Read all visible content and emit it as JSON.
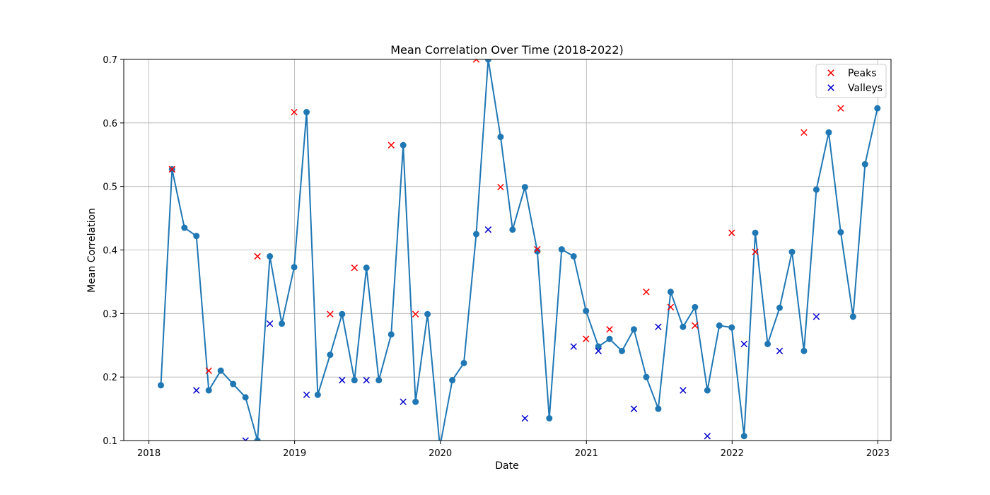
{
  "chart_data": {
    "type": "line",
    "title": "Mean Correlation Over Time (2018-2022)",
    "xlabel": "Date",
    "ylabel": "Mean Correlation",
    "xlim": [
      "2017-10-30",
      "2023-02-03"
    ],
    "ylim": [
      0.1,
      0.7
    ],
    "x_ticks": [
      "2018",
      "2019",
      "2020",
      "2021",
      "2022",
      "2023"
    ],
    "x_tick_dates": [
      "2018-01-01",
      "2019-01-01",
      "2020-01-01",
      "2021-01-01",
      "2022-01-01",
      "2023-01-01"
    ],
    "y_ticks": [
      "0.1",
      "0.2",
      "0.3",
      "0.4",
      "0.5",
      "0.6",
      "0.7"
    ],
    "y_tick_values": [
      0.1,
      0.2,
      0.3,
      0.4,
      0.5,
      0.6,
      0.7
    ],
    "grid": true,
    "legend_position": "top-right",
    "legend": [
      "Peaks",
      "Valleys"
    ],
    "colors": {
      "line": "#1f77b4",
      "peaks": "#ff0000",
      "valleys": "#0000cd",
      "grid": "#b0b0b0"
    },
    "series": [
      {
        "style": "line-markers",
        "x": [
          "2018-01-31",
          "2018-02-28",
          "2018-03-31",
          "2018-04-30",
          "2018-05-31",
          "2018-06-30",
          "2018-07-31",
          "2018-08-31",
          "2018-09-30",
          "2018-10-31",
          "2018-11-30",
          "2018-12-31",
          "2019-01-31",
          "2019-02-28",
          "2019-03-31",
          "2019-04-30",
          "2019-05-31",
          "2019-06-30",
          "2019-07-31",
          "2019-08-31",
          "2019-09-30",
          "2019-10-31",
          "2019-11-30",
          "2019-12-31",
          "2020-01-31",
          "2020-02-29",
          "2020-03-31",
          "2020-04-30",
          "2020-05-31",
          "2020-06-30",
          "2020-07-31",
          "2020-08-31",
          "2020-09-30",
          "2020-10-31",
          "2020-11-30",
          "2020-12-31",
          "2021-01-31",
          "2021-02-28",
          "2021-03-31",
          "2021-04-30",
          "2021-05-31",
          "2021-06-30",
          "2021-07-31",
          "2021-08-31",
          "2021-09-30",
          "2021-10-31",
          "2021-11-30",
          "2021-12-31",
          "2022-01-31",
          "2022-02-28",
          "2022-03-31",
          "2022-04-30",
          "2022-05-31",
          "2022-06-30",
          "2022-07-31",
          "2022-08-31",
          "2022-09-30",
          "2022-10-31",
          "2022-11-30",
          "2022-12-31"
        ],
        "values": [
          0.187,
          0.527,
          0.435,
          0.422,
          0.179,
          0.21,
          0.189,
          0.168,
          0.1,
          0.39,
          0.284,
          0.373,
          0.617,
          0.172,
          0.235,
          0.299,
          0.195,
          0.372,
          0.195,
          0.267,
          0.565,
          0.161,
          0.299,
          0.09,
          0.195,
          0.222,
          0.425,
          0.7,
          0.578,
          0.432,
          0.499,
          0.398,
          0.135,
          0.401,
          0.39,
          0.304,
          0.248,
          0.26,
          0.241,
          0.275,
          0.2,
          0.15,
          0.334,
          0.279,
          0.31,
          0.179,
          0.281,
          0.278,
          0.107,
          0.427,
          0.252,
          0.309,
          0.397,
          0.241,
          0.495,
          0.585,
          0.428,
          0.295,
          0.535,
          0.623
        ]
      },
      {
        "name": "Peaks",
        "style": "x-markers",
        "x": [
          "2018-02-28",
          "2018-05-31",
          "2018-09-30",
          "2018-12-31",
          "2019-03-31",
          "2019-05-31",
          "2019-08-31",
          "2019-10-31",
          "2020-03-31",
          "2020-05-31",
          "2020-08-31",
          "2020-12-31",
          "2021-02-28",
          "2021-05-31",
          "2021-07-31",
          "2021-09-30",
          "2021-12-31",
          "2022-02-28",
          "2022-06-30",
          "2022-09-30"
        ],
        "values": [
          0.527,
          0.21,
          0.39,
          0.617,
          0.299,
          0.372,
          0.565,
          0.299,
          0.7,
          0.499,
          0.401,
          0.26,
          0.275,
          0.334,
          0.31,
          0.281,
          0.427,
          0.397,
          0.585,
          0.623
        ]
      },
      {
        "name": "Valleys",
        "style": "x-markers",
        "x": [
          "2018-04-30",
          "2018-08-31",
          "2018-10-31",
          "2019-01-31",
          "2019-04-30",
          "2019-06-30",
          "2019-09-30",
          "2019-11-30",
          "2020-04-30",
          "2020-07-31",
          "2020-11-30",
          "2021-01-31",
          "2021-04-30",
          "2021-06-30",
          "2021-08-31",
          "2021-10-31",
          "2022-01-31",
          "2022-04-30",
          "2022-07-31"
        ],
        "values": [
          0.179,
          0.1,
          0.284,
          0.172,
          0.195,
          0.195,
          0.161,
          0.09,
          0.432,
          0.135,
          0.248,
          0.241,
          0.15,
          0.279,
          0.179,
          0.107,
          0.252,
          0.241,
          0.295
        ]
      }
    ]
  }
}
